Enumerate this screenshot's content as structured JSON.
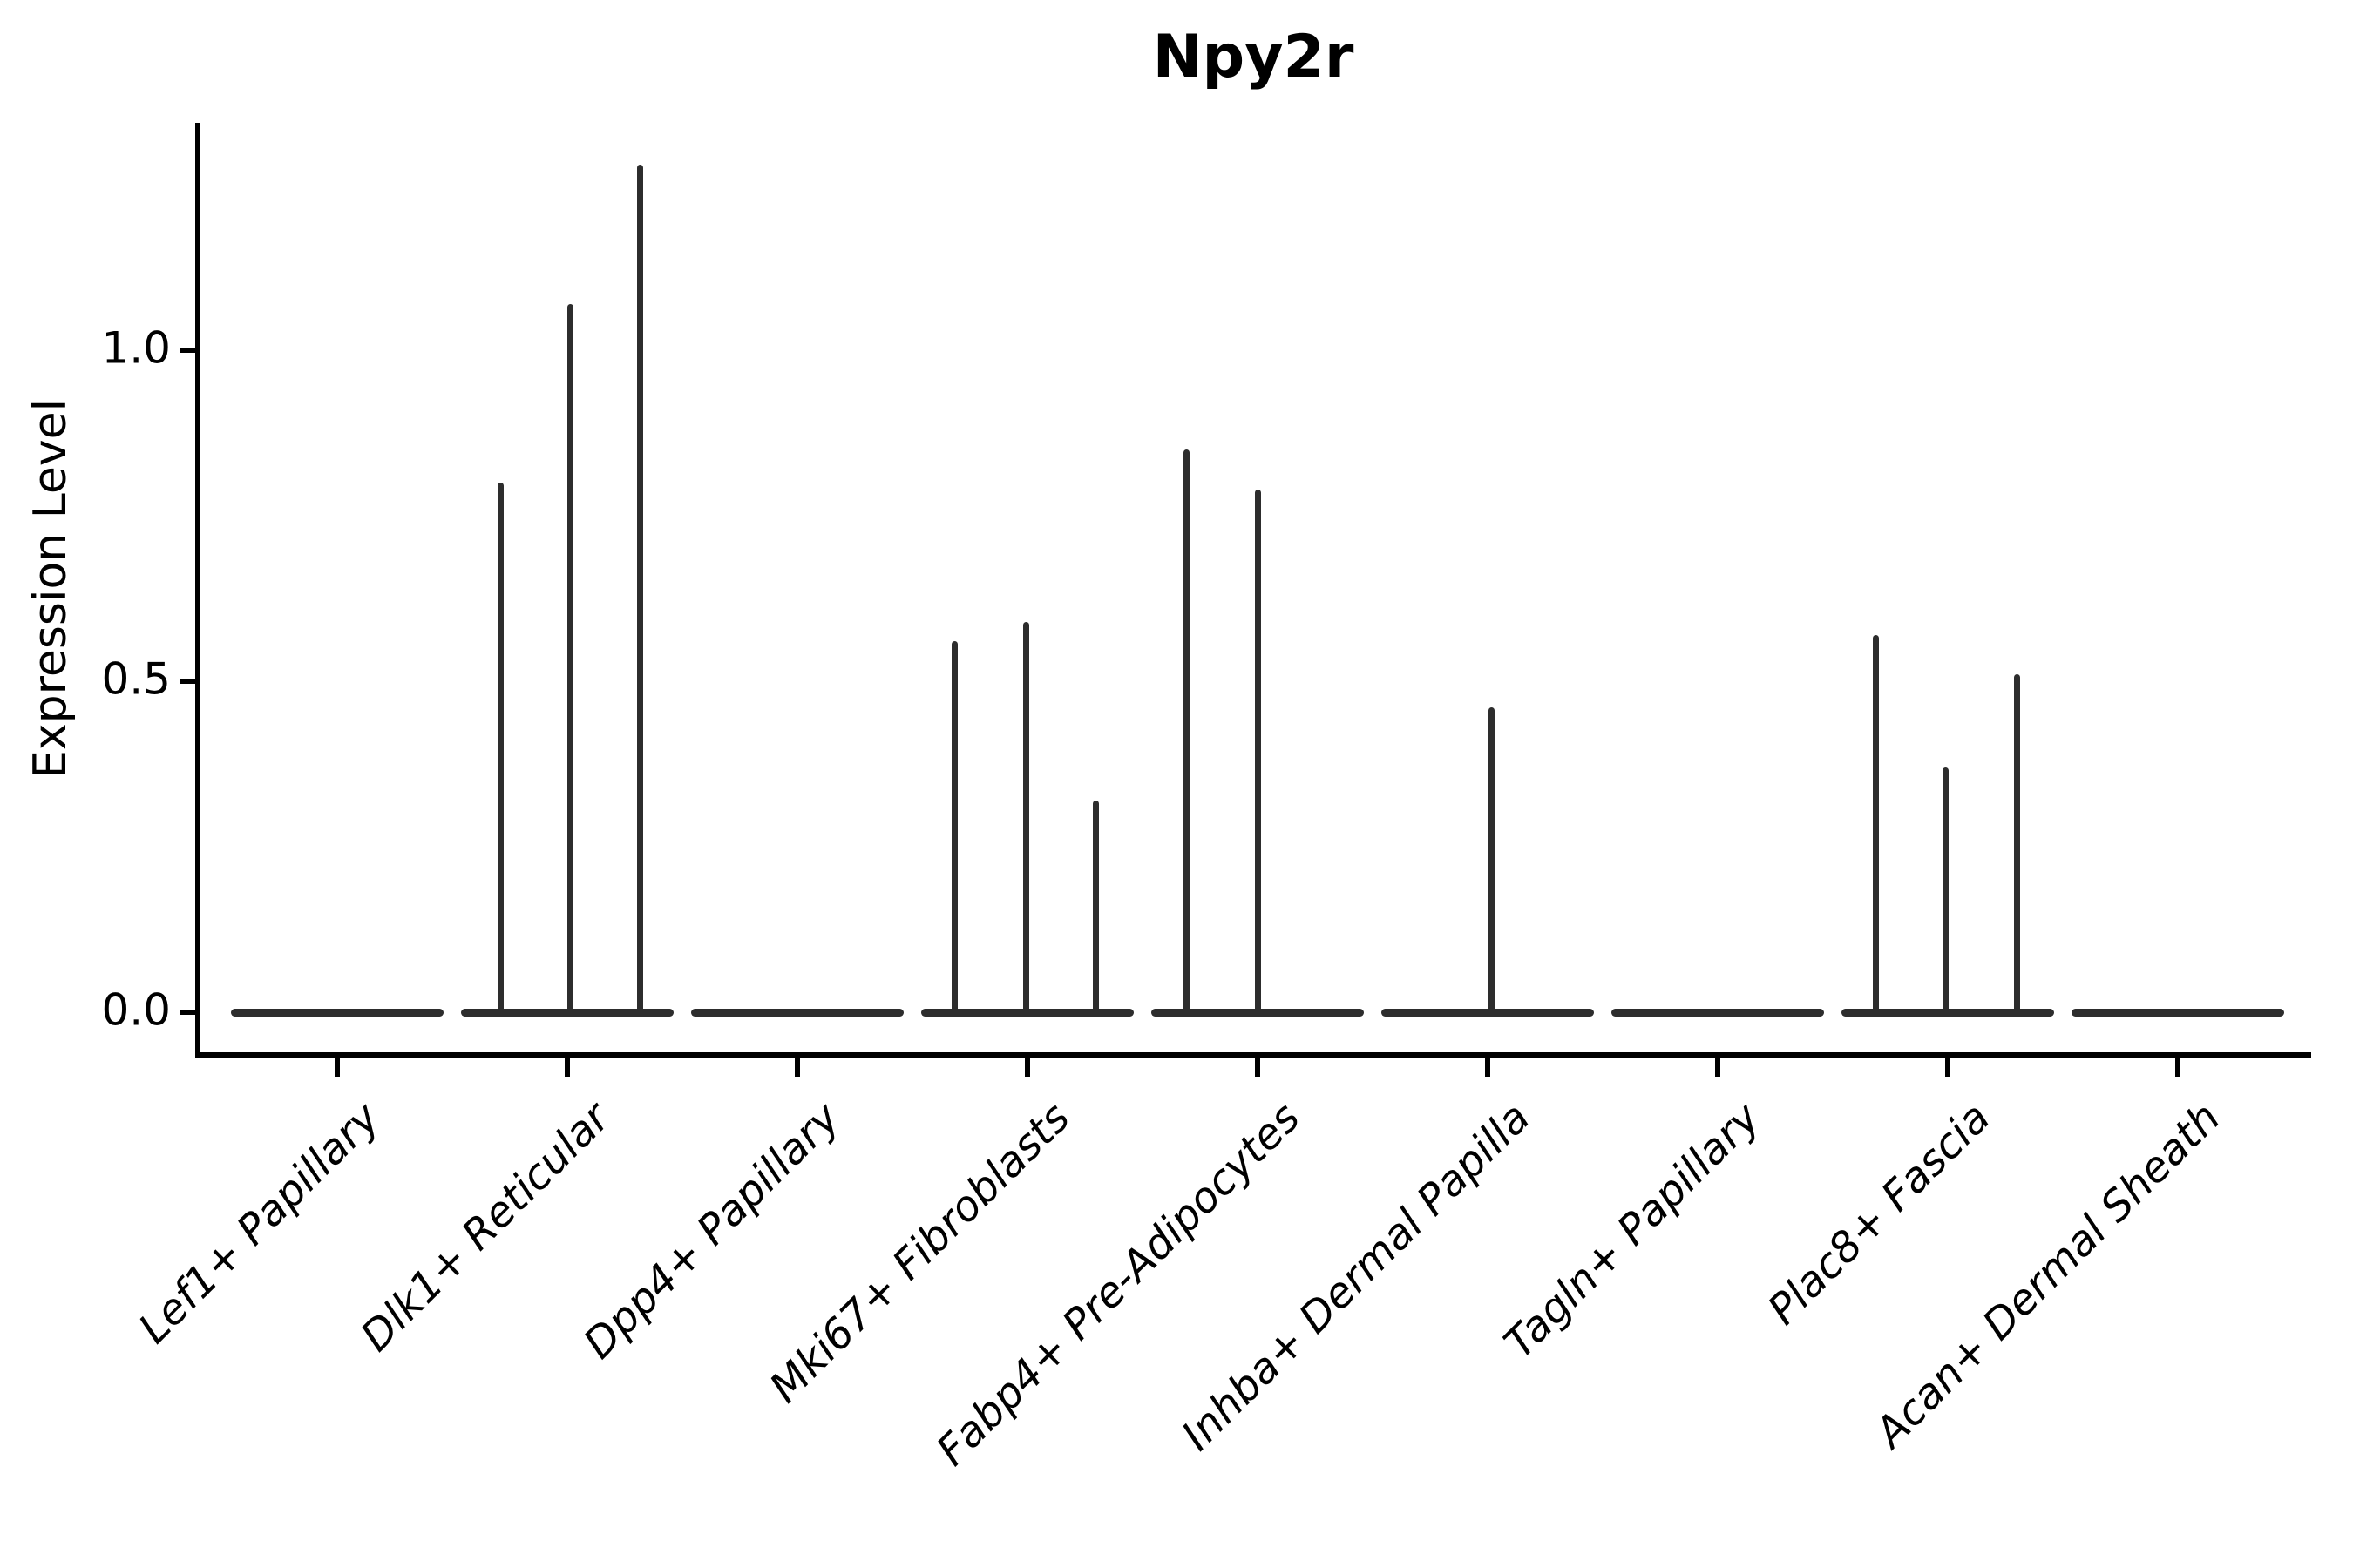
{
  "figure": {
    "title": "Npy2r"
  },
  "chart_data": {
    "type": "violin",
    "title": "Npy2r",
    "xlabel": "",
    "ylabel": "Expression Level",
    "ylim": [
      -0.06,
      1.34
    ],
    "yticks": [
      0.0,
      0.5,
      1.0
    ],
    "ytick_labels": [
      "0.0",
      "0.5",
      "1.0"
    ],
    "grid": false,
    "legend": null,
    "categories": [
      "Lef1+ Papillary",
      "Dlk1+ Reticular",
      "Dpp4+ Papillary",
      "Mki67+ Fibroblasts",
      "Fabp4+ Pre-Adipocytes",
      "Inhba+ Dermal Papilla",
      "Tagln+ Papillary",
      "Plac8+ Fascia",
      "Acan+ Dermal Sheath"
    ],
    "violins": [
      {
        "category": "Lef1+ Papillary",
        "baseline_value": 0.0,
        "spikes": []
      },
      {
        "category": "Dlk1+ Reticular",
        "baseline_value": 0.0,
        "spikes": [
          {
            "dx": -77,
            "value": 0.8
          },
          {
            "dx": 3,
            "value": 1.07
          },
          {
            "dx": 83,
            "value": 1.28
          }
        ]
      },
      {
        "category": "Dpp4+ Papillary",
        "baseline_value": 0.0,
        "spikes": []
      },
      {
        "category": "Mki67+ Fibroblasts",
        "baseline_value": 0.0,
        "spikes": [
          {
            "dx": -84,
            "value": 0.56
          },
          {
            "dx": -2,
            "value": 0.59
          },
          {
            "dx": 78,
            "value": 0.32
          }
        ]
      },
      {
        "category": "Fabp4+ Pre-Adipocytes",
        "baseline_value": 0.0,
        "spikes": [
          {
            "dx": -82,
            "value": 0.85
          },
          {
            "dx": 0,
            "value": 0.79
          }
        ]
      },
      {
        "category": "Inhba+ Dermal Papilla",
        "baseline_value": 0.0,
        "spikes": [
          {
            "dx": 4,
            "value": 0.46
          }
        ]
      },
      {
        "category": "Tagln+ Papillary",
        "baseline_value": 0.0,
        "spikes": []
      },
      {
        "category": "Plac8+ Fascia",
        "baseline_value": 0.0,
        "spikes": [
          {
            "dx": -83,
            "value": 0.57
          },
          {
            "dx": -3,
            "value": 0.37
          },
          {
            "dx": 79,
            "value": 0.51
          }
        ]
      },
      {
        "category": "Acan+ Dermal Sheath",
        "baseline_value": 0.0,
        "spikes": []
      }
    ],
    "colors": {
      "violin": "#2d2d2d",
      "axis": "#000000",
      "text": "#000000",
      "background": "#ffffff"
    }
  }
}
